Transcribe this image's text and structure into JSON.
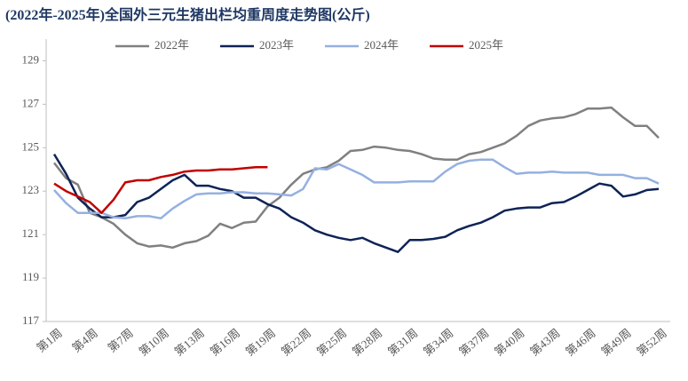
{
  "chart_data": {
    "type": "line",
    "title": "(2022年-2025年)全国外三元生猪出栏均重周度走势图(公斤)",
    "categories": [
      "第1周",
      null,
      null,
      "第4周",
      null,
      null,
      "第7周",
      null,
      null,
      "第10周",
      null,
      null,
      "第13周",
      null,
      null,
      "第16周",
      null,
      null,
      "第19周",
      null,
      null,
      "第22周",
      null,
      null,
      "第25周",
      null,
      null,
      "第28周",
      null,
      null,
      "第31周",
      null,
      null,
      "第34周",
      null,
      null,
      "第37周",
      null,
      null,
      "第40周",
      null,
      null,
      "第43周",
      null,
      null,
      "第46周",
      null,
      null,
      "第49周",
      null,
      null,
      "第52周"
    ],
    "ylim": [
      117,
      130
    ],
    "yticks": [
      117,
      119,
      121,
      123,
      125,
      127,
      129
    ],
    "grid": false,
    "legend": "top",
    "series": [
      {
        "name": "2022年",
        "color": "#808080",
        "values": [
          124.3,
          123.6,
          123.3,
          122.0,
          121.8,
          121.5,
          121.0,
          120.6,
          120.45,
          120.5,
          120.4,
          120.6,
          120.7,
          120.95,
          121.5,
          121.3,
          121.55,
          121.6,
          122.3,
          122.7,
          123.3,
          123.8,
          124.0,
          124.1,
          124.4,
          124.85,
          124.9,
          125.05,
          125.0,
          124.9,
          124.85,
          124.7,
          124.5,
          124.45,
          124.45,
          124.7,
          124.8,
          125.0,
          125.2,
          125.55,
          126.0,
          126.25,
          126.35,
          126.4,
          126.55,
          126.8,
          126.8,
          126.85,
          126.4,
          126.0,
          126.0,
          125.45
        ]
      },
      {
        "name": "2023年",
        "color": "#0e2356",
        "values": [
          124.7,
          123.8,
          122.7,
          122.2,
          121.8,
          121.8,
          121.9,
          122.5,
          122.7,
          123.1,
          123.5,
          123.75,
          123.25,
          123.25,
          123.1,
          123.0,
          122.7,
          122.7,
          122.4,
          122.2,
          121.8,
          121.55,
          121.2,
          121.0,
          120.85,
          120.75,
          120.85,
          120.6,
          120.4,
          120.2,
          120.75,
          120.75,
          120.8,
          120.9,
          121.2,
          121.4,
          121.55,
          121.8,
          122.1,
          122.2,
          122.25,
          122.25,
          122.45,
          122.5,
          122.75,
          123.05,
          123.35,
          123.25,
          122.75,
          122.85,
          123.05,
          123.1
        ]
      },
      {
        "name": "2024年",
        "color": "#95b0e0",
        "values": [
          123.05,
          122.45,
          122.0,
          122.0,
          122.0,
          121.8,
          121.75,
          121.85,
          121.85,
          121.75,
          122.2,
          122.55,
          122.85,
          122.9,
          122.9,
          122.95,
          122.95,
          122.9,
          122.9,
          122.85,
          122.8,
          123.1,
          124.05,
          124.0,
          124.25,
          124.0,
          123.75,
          123.4,
          123.4,
          123.4,
          123.45,
          123.45,
          123.45,
          123.9,
          124.25,
          124.4,
          124.45,
          124.45,
          124.1,
          123.8,
          123.85,
          123.85,
          123.9,
          123.85,
          123.85,
          123.85,
          123.75,
          123.75,
          123.75,
          123.6,
          123.6,
          123.35
        ]
      },
      {
        "name": "2025年",
        "color": "#c00000",
        "values": [
          123.35,
          123.0,
          122.75,
          122.5,
          122.0,
          122.6,
          123.4,
          123.5,
          123.5,
          123.65,
          123.75,
          123.9,
          123.95,
          123.95,
          124.0,
          124.0,
          124.05,
          124.1,
          124.1,
          null,
          null,
          null,
          null,
          null,
          null,
          null,
          null,
          null,
          null,
          null,
          null,
          null,
          null,
          null,
          null,
          null,
          null,
          null,
          null,
          null,
          null,
          null,
          null,
          null,
          null,
          null,
          null,
          null,
          null,
          null,
          null,
          null
        ]
      }
    ]
  }
}
